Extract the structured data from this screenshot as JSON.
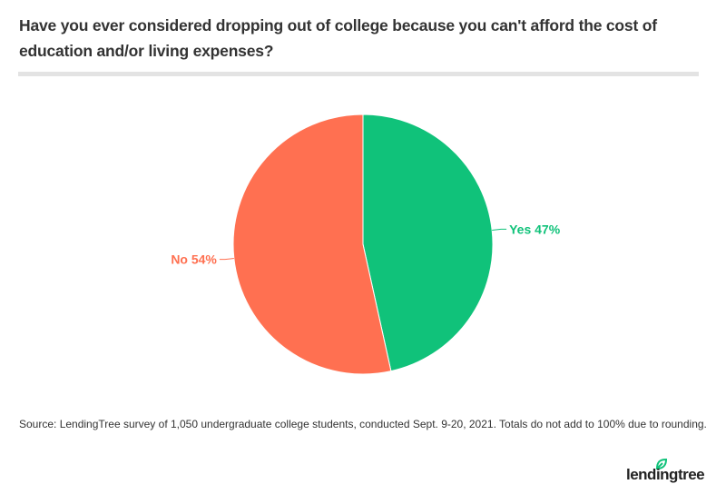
{
  "chart_data": {
    "type": "pie",
    "title": "Have you ever considered dropping out of college because you can't afford the cost of education and/or living expenses?",
    "slices": [
      {
        "label": "Yes",
        "value": 47,
        "display": "Yes 47%",
        "color": "#10c27a"
      },
      {
        "label": "No",
        "value": 54,
        "display": "No 54%",
        "color": "#ff7051"
      }
    ],
    "start": "top, clockwise"
  },
  "source": "Source: LendingTree survey of 1,050 undergraduate college students, conducted Sept. 9-20, 2021. Totals do not add to 100% due to rounding.",
  "logo": "lendingtree"
}
